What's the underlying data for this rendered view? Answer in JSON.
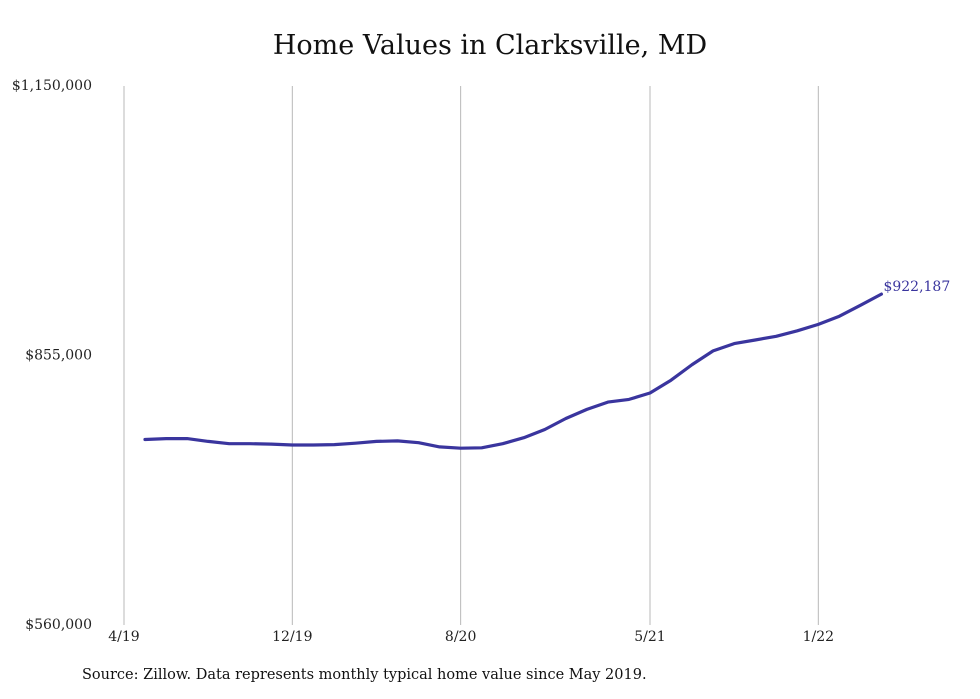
{
  "chart_data": {
    "type": "line",
    "title": "Home Values in Clarksville, MD",
    "xlabel": "",
    "ylabel": "",
    "ylim": [
      560000,
      1150000
    ],
    "y_ticks": [
      {
        "value": 1150000,
        "label": "$1,150,000"
      },
      {
        "value": 855000,
        "label": "$855,000"
      },
      {
        "value": 560000,
        "label": "$560,000"
      }
    ],
    "x_ticks": [
      {
        "date": "2019-04",
        "label": "4/19"
      },
      {
        "date": "2019-12",
        "label": "12/19"
      },
      {
        "date": "2020-08",
        "label": "8/20"
      },
      {
        "date": "2021-05",
        "label": "5/21"
      },
      {
        "date": "2022-01",
        "label": "1/22"
      }
    ],
    "grid": "vertical",
    "legend": "none",
    "series": [
      {
        "color": "#3a359e",
        "x": [
          "2019-05",
          "2019-06",
          "2019-07",
          "2019-08",
          "2019-09",
          "2019-10",
          "2019-11",
          "2019-12",
          "2020-01",
          "2020-02",
          "2020-03",
          "2020-04",
          "2020-05",
          "2020-06",
          "2020-07",
          "2020-08",
          "2020-09",
          "2020-10",
          "2020-11",
          "2020-12",
          "2021-01",
          "2021-02",
          "2021-03",
          "2021-04",
          "2021-05",
          "2021-06",
          "2021-07",
          "2021-08",
          "2021-09",
          "2021-10",
          "2021-11",
          "2021-12",
          "2022-01",
          "2022-02",
          "2022-03",
          "2022-04"
        ],
        "y": [
          763000,
          764000,
          764000,
          761000,
          758500,
          758500,
          758000,
          757000,
          757000,
          757500,
          759000,
          761000,
          761500,
          759500,
          755000,
          753500,
          754000,
          758500,
          765000,
          774000,
          786000,
          796000,
          804000,
          807000,
          814000,
          828000,
          845000,
          860000,
          868000,
          872000,
          876000,
          882000,
          889000,
          898000,
          910000,
          922187
        ]
      }
    ],
    "annotations": [
      {
        "x": "2022-04",
        "y": 922187,
        "text": "$922,187"
      }
    ],
    "source_note": "Source: Zillow. Data represents monthly typical home value since May 2019."
  }
}
